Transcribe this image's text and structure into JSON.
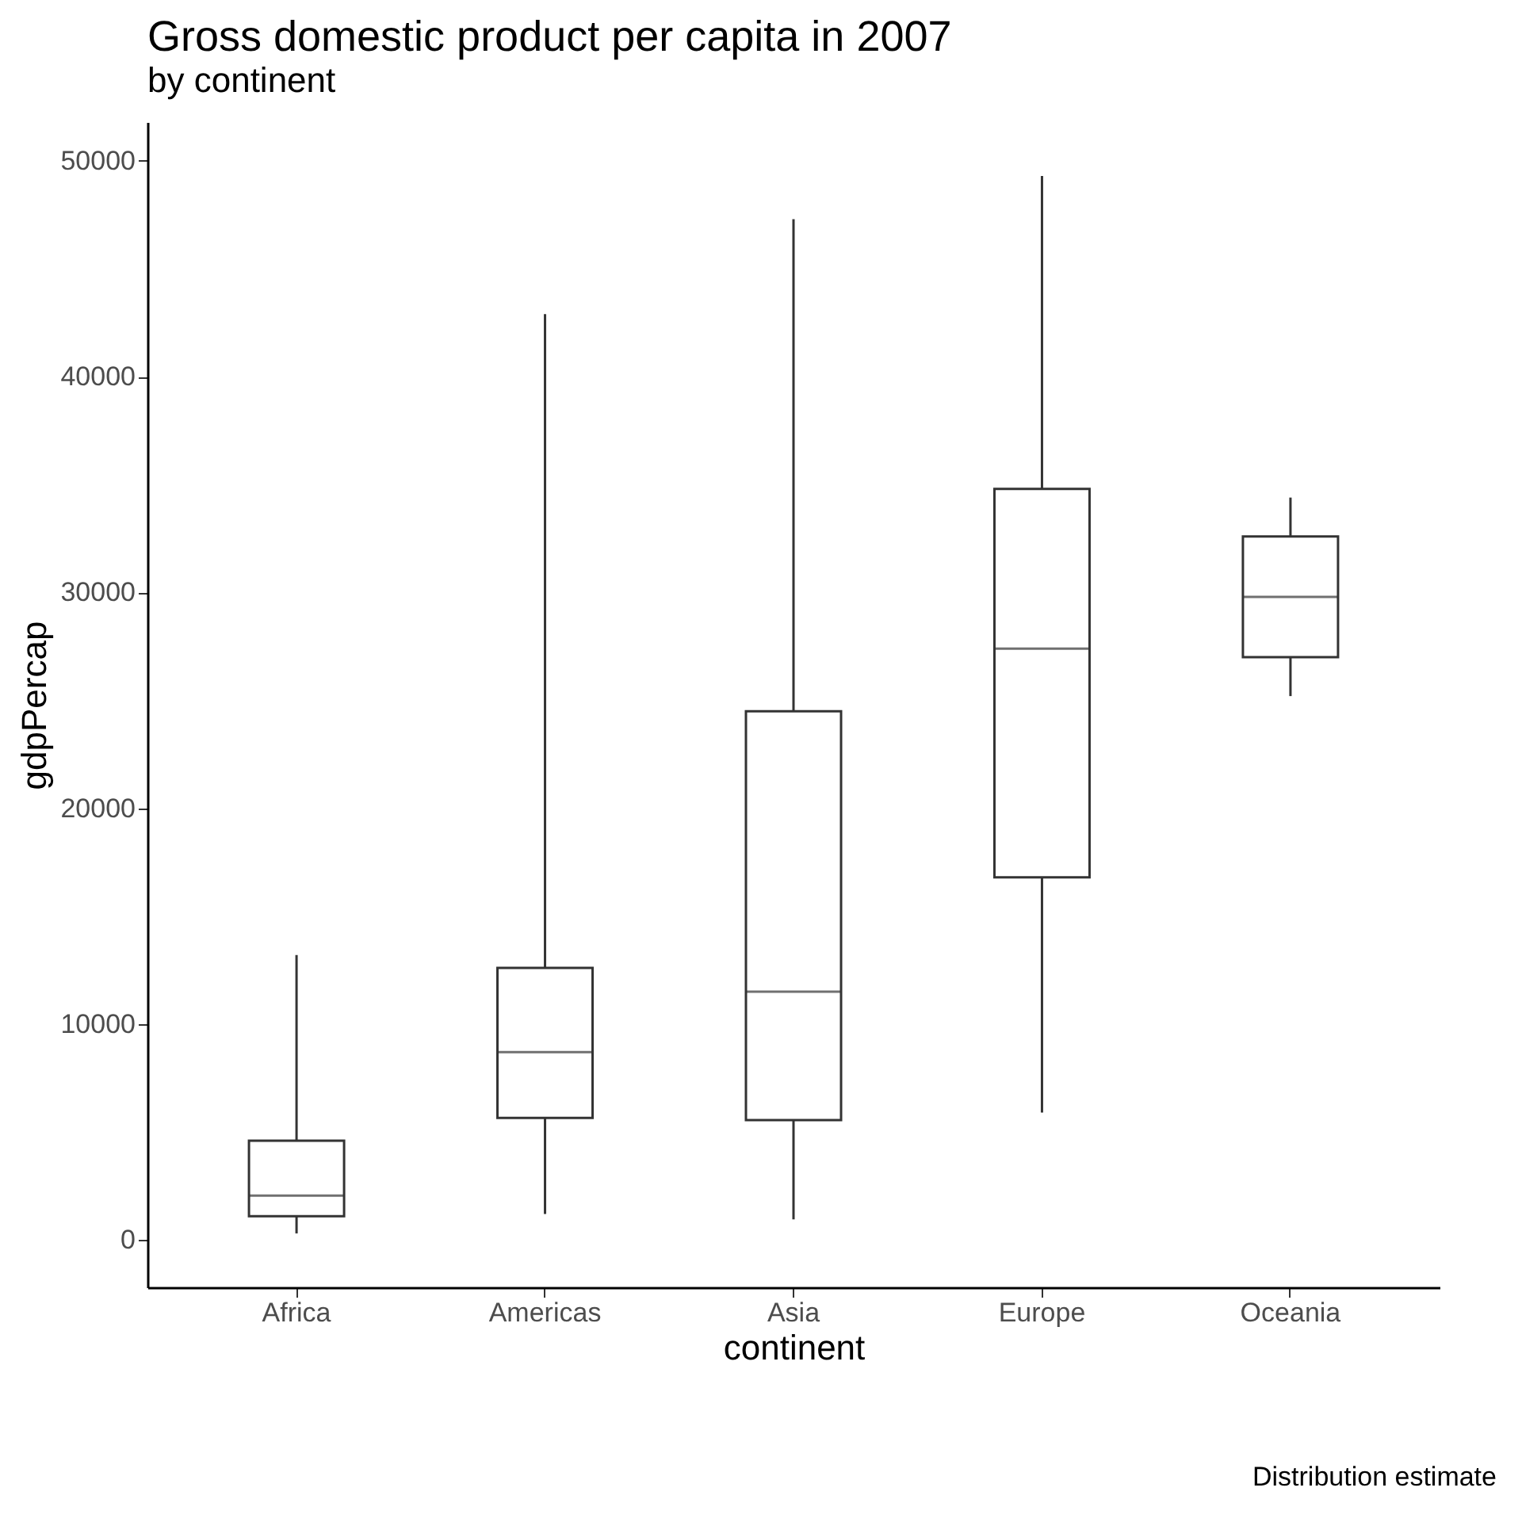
{
  "chart_data": {
    "type": "box",
    "title": "Gross domestic product per capita in 2007",
    "subtitle": "by continent",
    "xlabel": "continent",
    "ylabel": "gdpPercap",
    "categories": [
      "Africa",
      "Americas",
      "Asia",
      "Europe",
      "Oceania"
    ],
    "boxes": [
      {
        "low": 300,
        "q1": 1100,
        "median": 2050,
        "q3": 4600,
        "high": 13200
      },
      {
        "low": 1200,
        "q1": 5650,
        "median": 8700,
        "q3": 12600,
        "high": 42900
      },
      {
        "low": 950,
        "q1": 5550,
        "median": 11500,
        "q3": 24500,
        "high": 47300
      },
      {
        "low": 5900,
        "q1": 16800,
        "median": 27400,
        "q3": 34800,
        "high": 49300
      },
      {
        "low": 25200,
        "q1": 27000,
        "median": 29800,
        "q3": 32600,
        "high": 34400
      }
    ],
    "color": "#333333",
    "ylim": [
      -2200,
      51800
    ],
    "yticks": [
      0,
      10000,
      20000,
      30000,
      40000,
      50000
    ],
    "annotations": [
      "Distribution estimate"
    ]
  }
}
